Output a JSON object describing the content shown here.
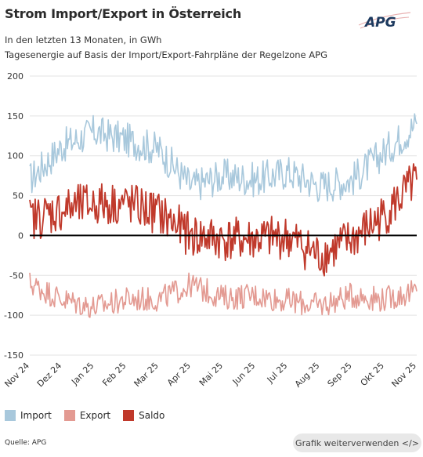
{
  "header": {
    "title": "Strom Import/Export in Österreich",
    "subtitle": "In den letzten 13 Monaten, in GWh",
    "description": "Tagesenergie auf Basis der Import/Export-Fahrpläne der Regelzone APG"
  },
  "logo": {
    "text": "APG"
  },
  "legend": {
    "items": [
      {
        "label": "Import",
        "color": "#a8c8dc"
      },
      {
        "label": "Export",
        "color": "#e39a92"
      },
      {
        "label": "Saldo",
        "color": "#c0392b"
      }
    ]
  },
  "footer": {
    "source": "Quelle: APG",
    "reuse_button": "Grafik weiterverwenden </>"
  },
  "chart_data": {
    "type": "line",
    "title": "Strom Import/Export in Österreich",
    "subtitle": "In den letzten 13 Monaten, in GWh",
    "x_ticks": [
      "Nov 24",
      "Dez 24",
      "Jan 25",
      "Feb 25",
      "Mar 25",
      "Apr 25",
      "Mai 25",
      "Jun 25",
      "Jul 25",
      "Aug 25",
      "Sep 25",
      "Okt 25",
      "Nov 25"
    ],
    "y_ticks": [
      "200",
      "150",
      "100",
      "50",
      "0",
      "-50",
      "-100",
      "-150"
    ],
    "ylim": [
      -150,
      200
    ],
    "zero_line": true,
    "x": [
      "Nov 24",
      "Dez 24",
      "Jan 25",
      "Feb 25",
      "Mar 25",
      "Apr 25",
      "Mai 25",
      "Jun 25",
      "Jul 25",
      "Aug 25",
      "Sep 25",
      "Okt 25",
      "Nov 25"
    ],
    "series": [
      {
        "name": "Import",
        "color": "#a8c8dc",
        "values": [
          70,
          112,
          130,
          120,
          108,
          62,
          75,
          70,
          80,
          62,
          70,
          105,
          140
        ]
      },
      {
        "name": "Export",
        "color": "#e39a92",
        "values": [
          -60,
          -80,
          -90,
          -80,
          -80,
          -62,
          -78,
          -75,
          -82,
          -88,
          -75,
          -80,
          -70
        ]
      },
      {
        "name": "Saldo",
        "color": "#c0392b",
        "values": [
          20,
          32,
          40,
          40,
          28,
          0,
          -5,
          -5,
          -2,
          -26,
          -5,
          25,
          70
        ]
      }
    ]
  }
}
